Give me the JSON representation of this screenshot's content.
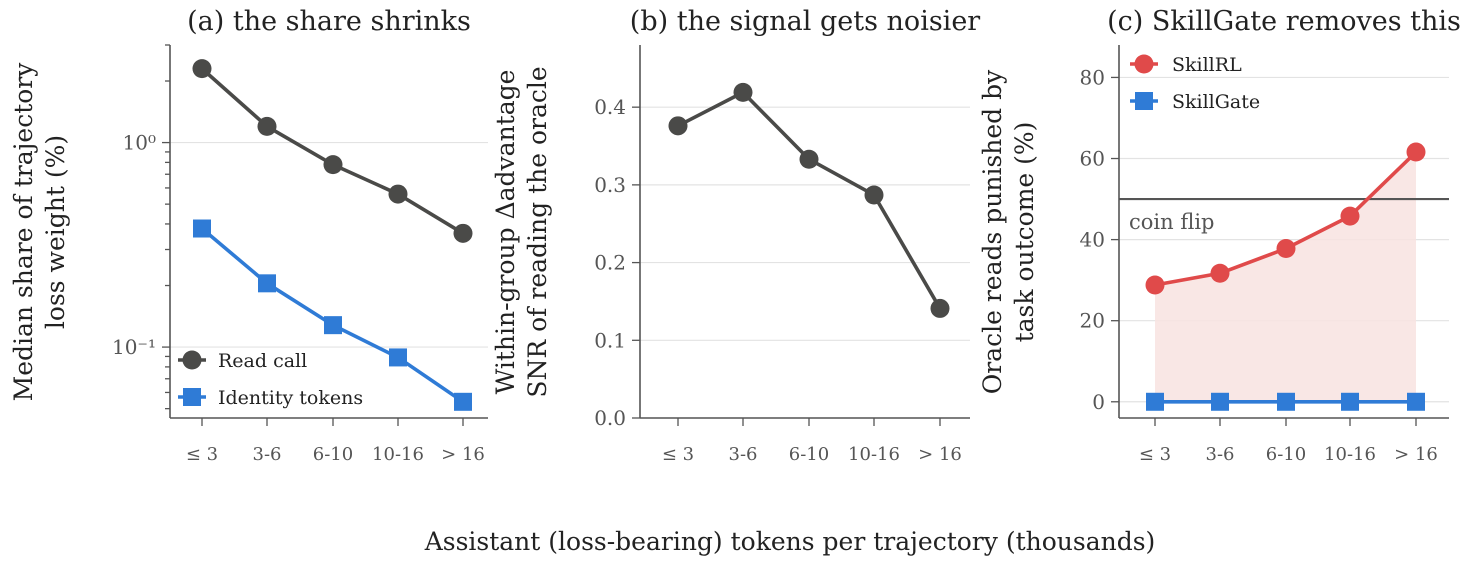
{
  "figure": {
    "xlabel": "Assistant (loss-bearing) tokens per trajectory (thousands)"
  },
  "colors": {
    "gray": "#4a4a48",
    "blue": "#2f7bd6",
    "red": "#e04a4a",
    "fill": "#f8e3e1",
    "ref_line": "#555555"
  },
  "chart_data": [
    {
      "type": "line",
      "title": "(a) the share shrinks",
      "ylabel": "Median share of trajectory loss weight (%)",
      "ylabel_lines": [
        "Median share of trajectory",
        "loss weight (%)"
      ],
      "yscale": "log",
      "ylim": [
        0.045,
        3.0
      ],
      "yticks": [
        {
          "value": 1,
          "label": "10⁰"
        },
        {
          "value": 0.1,
          "label": "10⁻¹"
        }
      ],
      "categories": [
        "≤ 3",
        "3-6",
        "6-10",
        "10-16",
        "> 16"
      ],
      "legend": "lower-left",
      "series": [
        {
          "name": "Read call",
          "marker": "circle",
          "color": "#4a4a48",
          "values": [
            2.3,
            1.2,
            0.78,
            0.56,
            0.36
          ]
        },
        {
          "name": "Identity tokens",
          "marker": "square",
          "color": "#2f7bd6",
          "values": [
            0.38,
            0.205,
            0.128,
            0.089,
            0.054
          ]
        }
      ]
    },
    {
      "type": "line",
      "title": "(b) the signal gets noisier",
      "ylabel": "Within-group Δadvantage SNR of reading the oracle",
      "ylabel_lines": [
        "Within-group Δadvantage",
        "SNR of reading the oracle"
      ],
      "yscale": "linear",
      "ylim": [
        0.0,
        0.48
      ],
      "yticks": [
        {
          "value": 0.0,
          "label": "0.0"
        },
        {
          "value": 0.1,
          "label": "0.1"
        },
        {
          "value": 0.2,
          "label": "0.2"
        },
        {
          "value": 0.3,
          "label": "0.3"
        },
        {
          "value": 0.4,
          "label": "0.4"
        }
      ],
      "categories": [
        "≤ 3",
        "3-6",
        "6-10",
        "10-16",
        "> 16"
      ],
      "series": [
        {
          "name": "",
          "marker": "circle",
          "color": "#4a4a48",
          "values": [
            0.376,
            0.419,
            0.333,
            0.287,
            0.141
          ]
        }
      ]
    },
    {
      "type": "line",
      "title": "(c) SkillGate removes this",
      "ylabel": "Oracle reads punished by task outcome (%)",
      "ylabel_lines": [
        "Oracle reads punished by",
        "task outcome (%)"
      ],
      "yscale": "linear",
      "ylim": [
        -4,
        88
      ],
      "yticks": [
        {
          "value": 0,
          "label": "0"
        },
        {
          "value": 20,
          "label": "20"
        },
        {
          "value": 40,
          "label": "40"
        },
        {
          "value": 60,
          "label": "60"
        },
        {
          "value": 80,
          "label": "80"
        }
      ],
      "categories": [
        "≤ 3",
        "3-6",
        "6-10",
        "10-16",
        "> 16"
      ],
      "legend": "top-left",
      "reference_line": {
        "value": 50,
        "label": "coin flip"
      },
      "series": [
        {
          "name": "SkillRL",
          "marker": "circle",
          "color": "#e04a4a",
          "values": [
            28.8,
            31.7,
            37.8,
            45.8,
            61.6
          ],
          "fill_to_zero": true
        },
        {
          "name": "SkillGate",
          "marker": "square",
          "color": "#2f7bd6",
          "values": [
            0,
            0,
            0,
            0,
            0
          ]
        }
      ]
    }
  ]
}
